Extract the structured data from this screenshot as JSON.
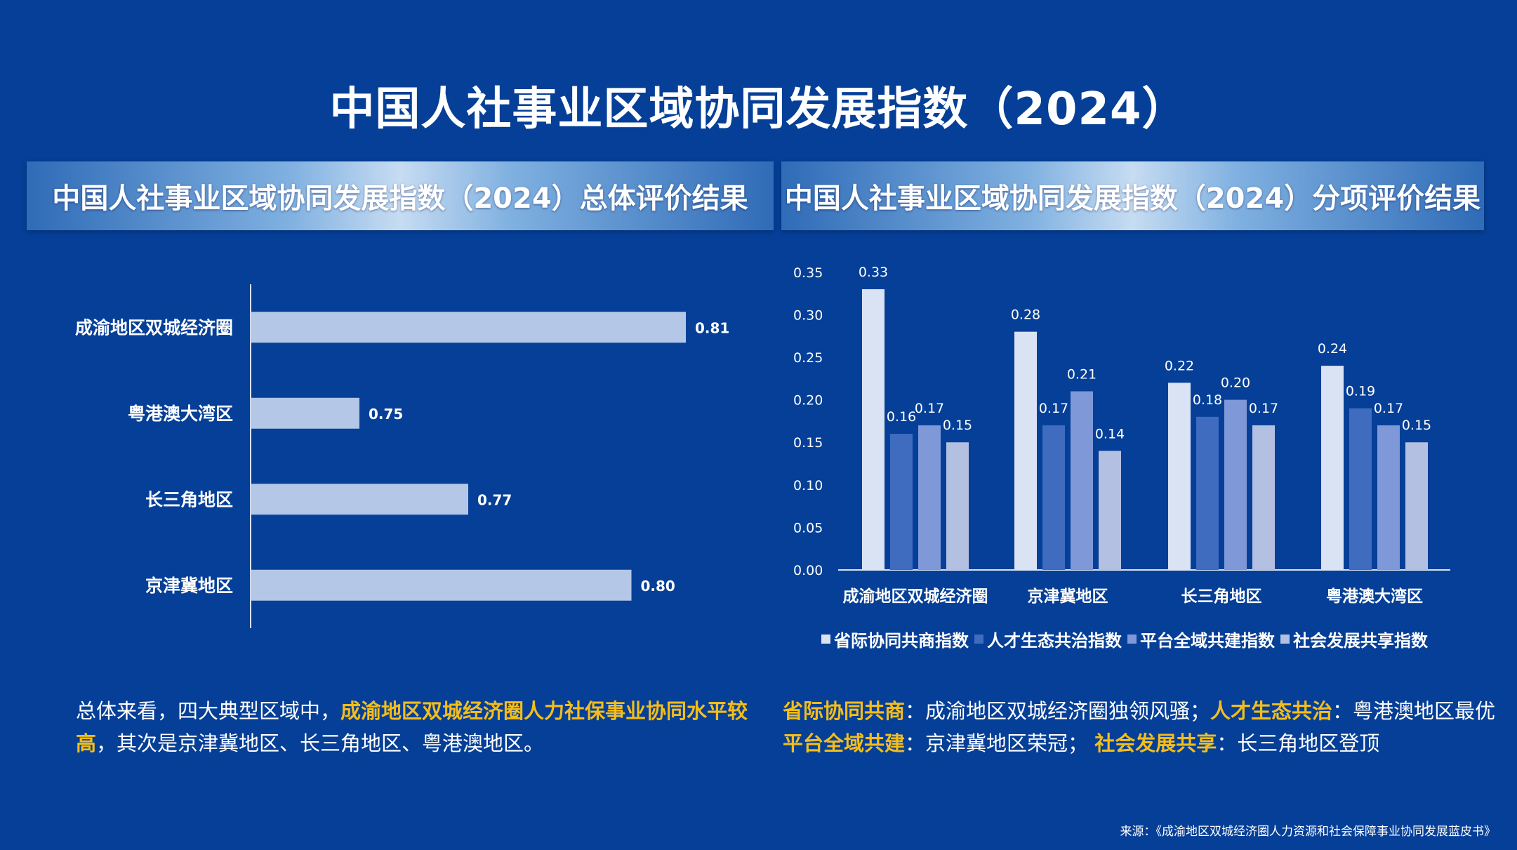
{
  "title": "中国人社事业区域协同发展指数（2024）",
  "left_panel": {
    "header": "中国人社事业区域协同发展指数（2024）总体评价结果",
    "summary": {
      "p1": "总体来看，四大典型区域中，",
      "h1": "成渝地区双城经济圈人力社保事业协同水平较高",
      "p2": "，其次是京津冀地区、长三角地区、粤港澳地区。"
    }
  },
  "right_panel": {
    "header": "中国人社事业区域协同发展指数（2024）分项评价结果",
    "summary": {
      "h1": "省际协同共商",
      "t1": "：成渝地区双城经济圈独领风骚；",
      "h2": "人才生态共治",
      "t2": "：粤港澳地区最优",
      "h3": "平台全域共建",
      "t3": "：京津冀地区荣冠；",
      "h4": "社会发展共享",
      "t4": "：长三角地区登顶"
    }
  },
  "source": "来源：《成渝地区双城经济圈人力资源和社会保障事业协同发展蓝皮书》",
  "chart_data": [
    {
      "type": "bar",
      "orientation": "horizontal",
      "categories": [
        "成渝地区双城经济圈",
        "粤港澳大湾区",
        "长三角地区",
        "京津冀地区"
      ],
      "values": [
        0.81,
        0.75,
        0.77,
        0.8
      ],
      "data_labels": [
        "0.81",
        "0.75",
        "0.77",
        "0.80"
      ],
      "xlim": [
        0.73,
        0.82
      ],
      "bar_color": "#b4c7e7"
    },
    {
      "type": "bar",
      "categories": [
        "成渝地区双城经济圈",
        "京津冀地区",
        "长三角地区",
        "粤港澳大湾区"
      ],
      "series": [
        {
          "name": "省际协同共商指数",
          "values": [
            0.33,
            0.28,
            0.22,
            0.24
          ],
          "color": "#dae3f3"
        },
        {
          "name": "人才生态共治指数",
          "values": [
            0.16,
            0.17,
            0.18,
            0.19
          ],
          "color": "#3f6cbf"
        },
        {
          "name": "平台全域共建指数",
          "values": [
            0.17,
            0.21,
            0.2,
            0.17
          ],
          "color": "#7f98d8"
        },
        {
          "name": "社会发展共享指数",
          "values": [
            0.15,
            0.14,
            0.17,
            0.15
          ],
          "color": "#b4c0e2"
        }
      ],
      "ylim": [
        0,
        0.35
      ],
      "yticks": [
        "0.00",
        "0.05",
        "0.10",
        "0.15",
        "0.20",
        "0.25",
        "0.30",
        "0.35"
      ],
      "legend_position": "bottom"
    }
  ]
}
